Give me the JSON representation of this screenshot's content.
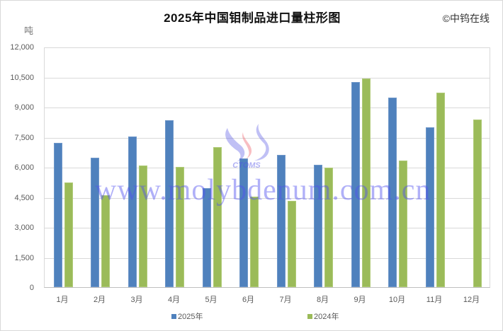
{
  "header": {
    "title": "2025年中国钼制品进口量柱形图",
    "copyright": "©中钨在线",
    "unit": "吨"
  },
  "watermark": {
    "text": "www.molybdenum.com.cn",
    "logo_text": "CTOMS"
  },
  "colors": {
    "series_2025": "#4f81bd",
    "series_2024": "#9bbb59"
  },
  "legend": [
    {
      "label": "2025年",
      "color": "#4f81bd"
    },
    {
      "label": "2024年",
      "color": "#9bbb59"
    }
  ],
  "y_ticks": [
    "0",
    "1,500",
    "3,000",
    "4,500",
    "6,000",
    "7,500",
    "9,000",
    "10,500",
    "12,000"
  ],
  "x_ticks": [
    "1月",
    "2月",
    "3月",
    "4月",
    "5月",
    "6月",
    "7月",
    "8月",
    "9月",
    "10月",
    "11月",
    "12月"
  ],
  "chart_data": {
    "type": "bar",
    "title": "2025年中国钼制品进口量柱形图",
    "xlabel": "",
    "ylabel": "吨",
    "ylim": [
      0,
      12000
    ],
    "yticks": [
      0,
      1500,
      3000,
      4500,
      6000,
      7500,
      9000,
      10500,
      12000
    ],
    "grid": true,
    "legend_position": "bottom",
    "categories": [
      "1月",
      "2月",
      "3月",
      "4月",
      "5月",
      "6月",
      "7月",
      "8月",
      "9月",
      "10月",
      "11月",
      "12月"
    ],
    "series": [
      {
        "name": "2025年",
        "color": "#4f81bd",
        "values": [
          7210,
          6460,
          7510,
          8320,
          4950,
          6430,
          6600,
          6110,
          10250,
          9450,
          7970,
          null
        ]
      },
      {
        "name": "2024年",
        "color": "#9bbb59",
        "values": [
          5210,
          4590,
          6080,
          6000,
          7000,
          4510,
          4290,
          5980,
          10410,
          6320,
          9690,
          8350
        ]
      }
    ],
    "annotations": [
      "©中钨在线",
      "www.molybdenum.com.cn"
    ]
  }
}
